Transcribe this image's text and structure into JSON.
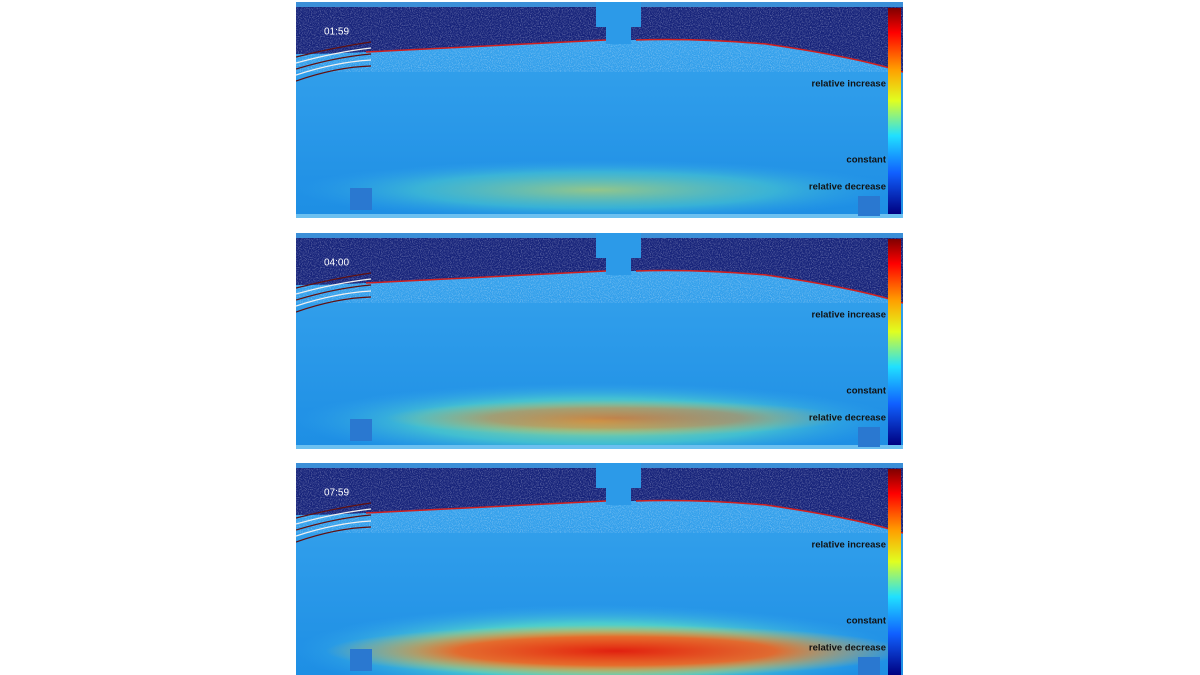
{
  "panels": [
    {
      "time": "01:59",
      "legend": {
        "increase": "relative increase",
        "constant": "constant",
        "decrease": "relative decrease"
      }
    },
    {
      "time": "04:00",
      "legend": {
        "increase": "relative increase",
        "constant": "constant",
        "decrease": "relative decrease"
      }
    },
    {
      "time": "07:59",
      "legend": {
        "increase": "relative increase",
        "constant": "constant",
        "decrease": "relative decrease"
      }
    }
  ]
}
